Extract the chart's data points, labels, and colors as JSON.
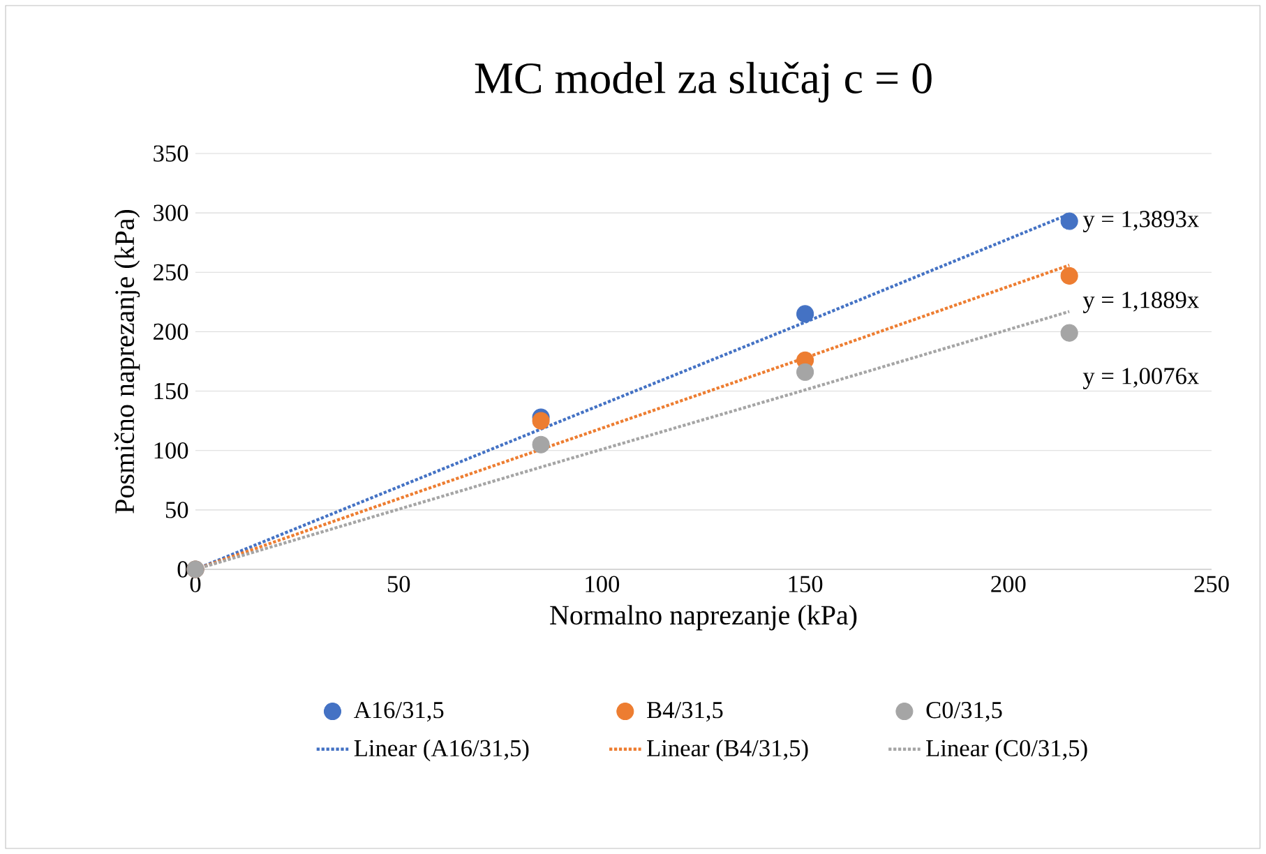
{
  "chart_data": {
    "type": "scatter",
    "title": "MC model za slučaj c = 0",
    "xlabel": "Normalno naprezanje (kPa)",
    "ylabel": "Posmično naprezanje (kPa)",
    "x": [
      0,
      85,
      150,
      215
    ],
    "series": [
      {
        "name": "A16/31,5",
        "color": "#4472c4",
        "values": [
          0,
          128,
          215,
          293
        ]
      },
      {
        "name": "B4/31,5",
        "color": "#ed7d31",
        "values": [
          0,
          125,
          176,
          247
        ]
      },
      {
        "name": "C0/31,5",
        "color": "#a5a5a5",
        "values": [
          0,
          105,
          166,
          199
        ]
      },
      {
        "name": "Linear (A16/31,5)",
        "type": "line",
        "line_style": "dotted",
        "marker": "none",
        "color": "#4472c4",
        "values": [
          0,
          118,
          208,
          299
        ]
      },
      {
        "name": "Linear (B4/31,5)",
        "type": "line",
        "line_style": "dotted",
        "marker": "none",
        "color": "#ed7d31",
        "values": [
          0,
          101,
          178,
          256
        ]
      },
      {
        "name": "Linear (C0/31,5)",
        "type": "line",
        "line_style": "dotted",
        "marker": "none",
        "color": "#a5a5a5",
        "values": [
          0,
          86,
          151,
          217
        ]
      }
    ],
    "annotations": [
      "y = 1,3893x",
      "y = 1,1889x",
      "y = 1,0076x"
    ],
    "xlim": [
      0,
      250
    ],
    "xticks": [
      0,
      50,
      100,
      150,
      200,
      250
    ],
    "ylim": [
      0,
      350
    ],
    "yticks": [
      0,
      50,
      100,
      150,
      200,
      250,
      300,
      350
    ],
    "grid": "y",
    "legend": "bottom",
    "marker": "circle"
  }
}
